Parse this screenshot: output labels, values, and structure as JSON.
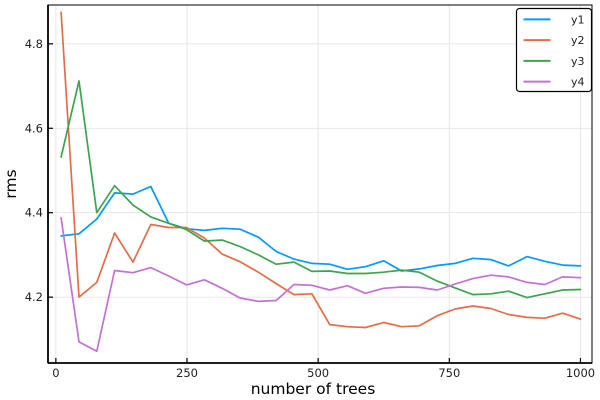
{
  "chart_data": {
    "type": "line",
    "title": "",
    "xlabel": "number of trees",
    "ylabel": "rms",
    "grid": true,
    "legend_position": "top-right",
    "xlim": [
      -15,
      1022
    ],
    "ylim": [
      4.044,
      4.892
    ],
    "x_ticks": [
      0,
      250,
      500,
      750,
      1000
    ],
    "x_tick_labels": [
      "0",
      "250",
      "500",
      "750",
      "1000"
    ],
    "y_ticks": [
      4.2,
      4.4,
      4.6,
      4.8
    ],
    "y_tick_labels": [
      "4.2",
      "4.4",
      "4.6",
      "4.8"
    ],
    "x": [
      10,
      44,
      78,
      112,
      147,
      181,
      215,
      249,
      283,
      317,
      351,
      386,
      420,
      454,
      488,
      522,
      556,
      590,
      625,
      659,
      693,
      727,
      761,
      795,
      829,
      863,
      898,
      932,
      966,
      1000
    ],
    "series": [
      {
        "name": "y1",
        "color": "#009AFA",
        "values": [
          4.345,
          4.35,
          4.385,
          4.447,
          4.444,
          4.462,
          4.375,
          4.362,
          4.358,
          4.363,
          4.361,
          4.342,
          4.308,
          4.29,
          4.28,
          4.278,
          4.266,
          4.272,
          4.286,
          4.262,
          4.267,
          4.275,
          4.28,
          4.292,
          4.289,
          4.274,
          4.296,
          4.285,
          4.276,
          4.274
        ]
      },
      {
        "name": "y2",
        "color": "#E26E47",
        "values": [
          4.875,
          4.2,
          4.235,
          4.352,
          4.283,
          4.372,
          4.365,
          4.365,
          4.34,
          4.302,
          4.284,
          4.259,
          4.232,
          4.206,
          4.208,
          4.135,
          4.13,
          4.128,
          4.14,
          4.13,
          4.132,
          4.156,
          4.172,
          4.179,
          4.173,
          4.159,
          4.152,
          4.15,
          4.162,
          4.148
        ]
      },
      {
        "name": "y3",
        "color": "#3DA44E",
        "values": [
          4.532,
          4.712,
          4.4,
          4.464,
          4.418,
          4.39,
          4.375,
          4.36,
          4.333,
          4.335,
          4.32,
          4.3,
          4.278,
          4.283,
          4.261,
          4.262,
          4.256,
          4.256,
          4.259,
          4.264,
          4.259,
          4.238,
          4.222,
          4.206,
          4.208,
          4.214,
          4.199,
          4.208,
          4.217,
          4.218
        ]
      },
      {
        "name": "y4",
        "color": "#C371D2",
        "values": [
          4.388,
          4.094,
          4.072,
          4.263,
          4.258,
          4.27,
          4.25,
          4.229,
          4.241,
          4.221,
          4.198,
          4.19,
          4.192,
          4.23,
          4.228,
          4.217,
          4.227,
          4.209,
          4.221,
          4.224,
          4.223,
          4.217,
          4.231,
          4.244,
          4.252,
          4.248,
          4.235,
          4.23,
          4.248,
          4.246
        ]
      }
    ]
  },
  "colors": {
    "background": "#FFFFFF",
    "grid": "#E3E3E3",
    "frame": "#000000",
    "tick_label": "#1F1F1F"
  }
}
